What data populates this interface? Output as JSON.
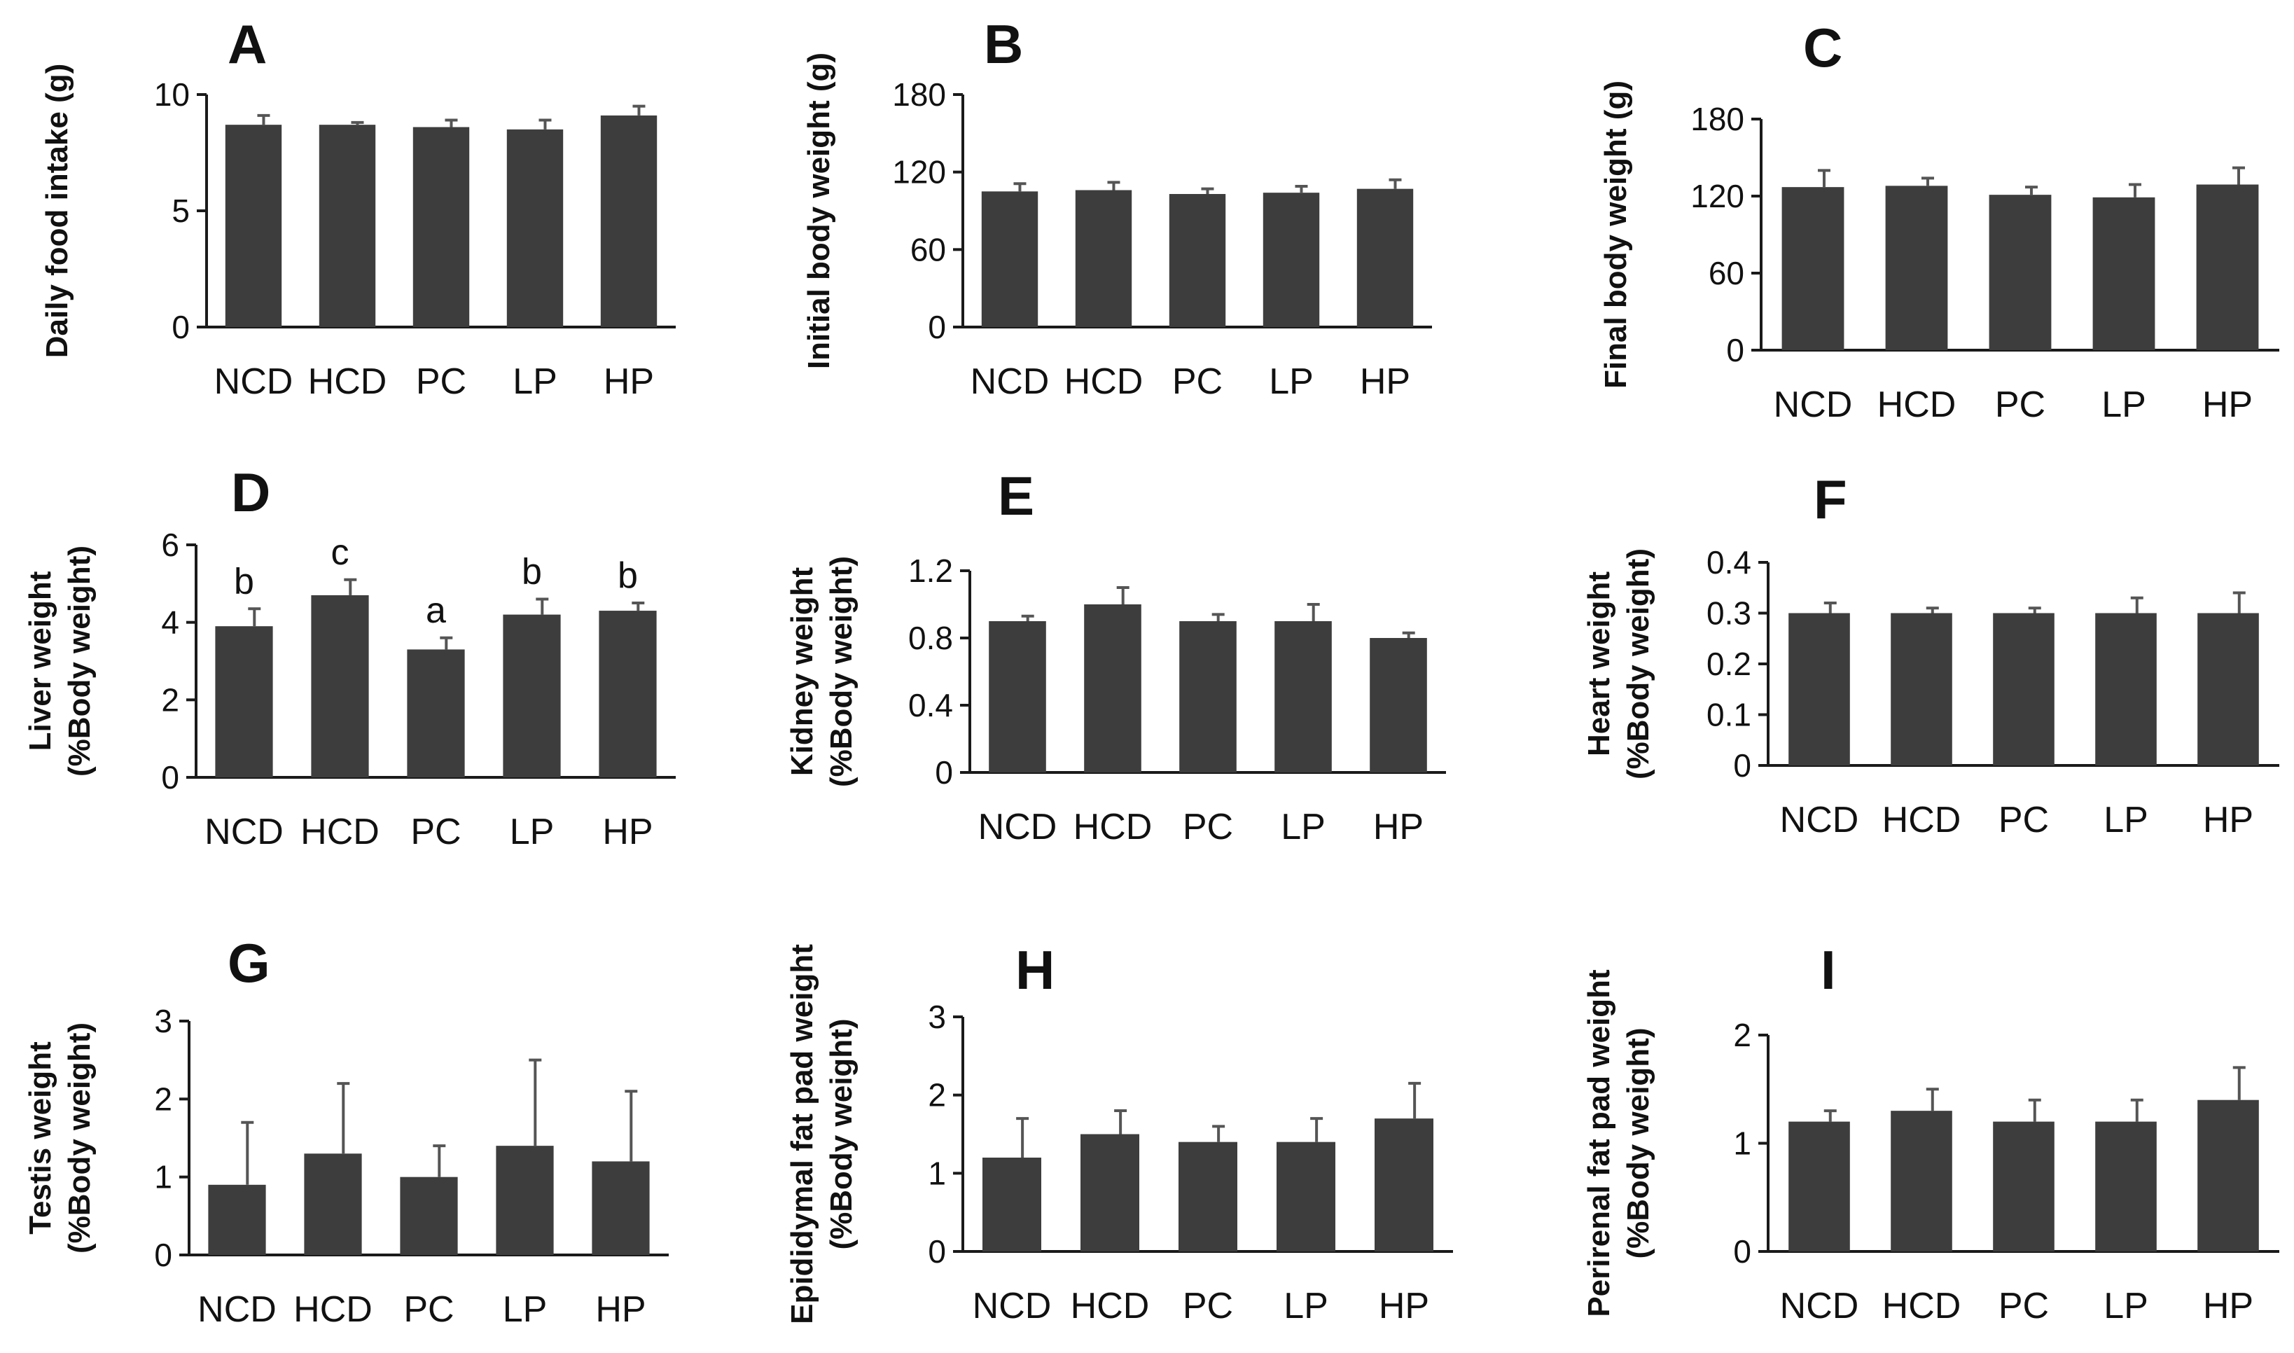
{
  "figure": {
    "bar_color": "#3d3d3d",
    "axis_color": "#1a1a1a"
  },
  "chart_data": [
    {
      "panel": "A",
      "type": "bar",
      "title": "A",
      "categories": [
        "NCD",
        "HCD",
        "PC",
        "LP",
        "HP"
      ],
      "values": [
        8.7,
        8.7,
        8.6,
        8.5,
        9.1
      ],
      "errors": [
        0.4,
        0.1,
        0.3,
        0.4,
        0.4
      ],
      "ylabel": [
        "Daily food intake (g)"
      ],
      "ylim": [
        0,
        10
      ],
      "yticks": [
        0,
        5,
        10
      ],
      "ytick_labels": [
        "0",
        "5",
        "10"
      ],
      "significance": []
    },
    {
      "panel": "B",
      "type": "bar",
      "title": "B",
      "categories": [
        "NCD",
        "HCD",
        "PC",
        "LP",
        "HP"
      ],
      "values": [
        105,
        106,
        103,
        104,
        107
      ],
      "errors": [
        6,
        6,
        4,
        5,
        7
      ],
      "ylabel": [
        "Initial body weight (g)"
      ],
      "ylim": [
        0,
        180
      ],
      "yticks": [
        0,
        60,
        120,
        180
      ],
      "ytick_labels": [
        "0",
        "60",
        "120",
        "180"
      ],
      "significance": []
    },
    {
      "panel": "C",
      "type": "bar",
      "title": "C",
      "categories": [
        "NCD",
        "HCD",
        "PC",
        "LP",
        "HP"
      ],
      "values": [
        127,
        128,
        121,
        119,
        129
      ],
      "errors": [
        13,
        6,
        6,
        10,
        13
      ],
      "ylabel": [
        "Final body weight (g)"
      ],
      "ylim": [
        0,
        180
      ],
      "yticks": [
        0,
        60,
        120,
        180
      ],
      "ytick_labels": [
        "0",
        "60",
        "120",
        "180"
      ],
      "significance": []
    },
    {
      "panel": "D",
      "type": "bar",
      "title": "D",
      "categories": [
        "NCD",
        "HCD",
        "PC",
        "LP",
        "HP"
      ],
      "values": [
        3.9,
        4.7,
        3.3,
        4.2,
        4.3
      ],
      "errors": [
        0.45,
        0.4,
        0.3,
        0.4,
        0.2
      ],
      "ylabel": [
        "Liver weight",
        "(%Body weight)"
      ],
      "ylim": [
        0,
        6
      ],
      "yticks": [
        0,
        2,
        4,
        6
      ],
      "ytick_labels": [
        "0",
        "2",
        "4",
        "6"
      ],
      "significance": [
        "b",
        "c",
        "a",
        "b",
        "b"
      ]
    },
    {
      "panel": "E",
      "type": "bar",
      "title": "E",
      "categories": [
        "NCD",
        "HCD",
        "PC",
        "LP",
        "HP"
      ],
      "values": [
        0.9,
        1.0,
        0.9,
        0.9,
        0.8
      ],
      "errors": [
        0.03,
        0.1,
        0.04,
        0.1,
        0.03
      ],
      "ylabel": [
        "Kidney weight",
        "(%Body weight)"
      ],
      "ylim": [
        0,
        1.2
      ],
      "yticks": [
        0,
        0.4,
        0.8,
        1.2
      ],
      "ytick_labels": [
        "0",
        "0.4",
        "0.8",
        "1.2"
      ],
      "significance": []
    },
    {
      "panel": "F",
      "type": "bar",
      "title": "F",
      "categories": [
        "NCD",
        "HCD",
        "PC",
        "LP",
        "HP"
      ],
      "values": [
        0.3,
        0.3,
        0.3,
        0.3,
        0.3
      ],
      "errors": [
        0.02,
        0.01,
        0.01,
        0.03,
        0.04
      ],
      "ylabel": [
        "Heart weight",
        "(%Body weight)"
      ],
      "ylim": [
        0,
        0.4
      ],
      "yticks": [
        0,
        0.1,
        0.2,
        0.3,
        0.4
      ],
      "ytick_labels": [
        "0",
        "0.1",
        "0.2",
        "0.3",
        "0.4"
      ],
      "significance": []
    },
    {
      "panel": "G",
      "type": "bar",
      "title": "G",
      "categories": [
        "NCD",
        "HCD",
        "PC",
        "LP",
        "HP"
      ],
      "values": [
        0.9,
        1.3,
        1.0,
        1.4,
        1.2
      ],
      "errors": [
        0.8,
        0.9,
        0.4,
        1.1,
        0.9
      ],
      "ylabel": [
        "Testis weight",
        "(%Body weight)"
      ],
      "ylim": [
        0,
        3
      ],
      "yticks": [
        0,
        1,
        2,
        3
      ],
      "ytick_labels": [
        "0",
        "1",
        "2",
        "3"
      ],
      "significance": []
    },
    {
      "panel": "H",
      "type": "bar",
      "title": "H",
      "categories": [
        "NCD",
        "HCD",
        "PC",
        "LP",
        "HP"
      ],
      "values": [
        1.2,
        1.5,
        1.4,
        1.4,
        1.7
      ],
      "errors": [
        0.5,
        0.3,
        0.2,
        0.3,
        0.45
      ],
      "ylabel": [
        "Epididymal fat pad weight",
        "(%Body weight)"
      ],
      "ylim": [
        0,
        3
      ],
      "yticks": [
        0,
        1,
        2,
        3
      ],
      "ytick_labels": [
        "0",
        "1",
        "2",
        "3"
      ],
      "significance": []
    },
    {
      "panel": "I",
      "type": "bar",
      "title": "I",
      "categories": [
        "NCD",
        "HCD",
        "PC",
        "LP",
        "HP"
      ],
      "values": [
        1.2,
        1.3,
        1.2,
        1.2,
        1.4
      ],
      "errors": [
        0.1,
        0.2,
        0.2,
        0.2,
        0.3
      ],
      "ylabel": [
        "Perirenal fat pad weight",
        "(%Body weight)"
      ],
      "ylim": [
        0,
        2
      ],
      "yticks": [
        0,
        1,
        2
      ],
      "ytick_labels": [
        "0",
        "1",
        "2"
      ],
      "significance": []
    }
  ]
}
